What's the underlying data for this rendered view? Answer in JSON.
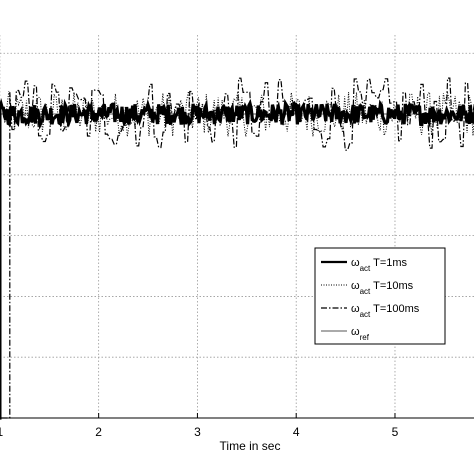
{
  "chart_data": {
    "type": "line",
    "xlabel": "Time in sec",
    "ylabel": "",
    "xlim": [
      0.9,
      5.8
    ],
    "ylim": [
      0,
      1.26
    ],
    "xticks": [
      1,
      2,
      3,
      4,
      5
    ],
    "xtick_labels": [
      "1",
      "2",
      "3",
      "4",
      "5"
    ],
    "grid": true,
    "legend_position": "lower-right",
    "series": [
      {
        "name": "ω_act T=1ms",
        "symbol": "ω",
        "subscript": "act",
        "suffix": "T=1ms",
        "style": "solid-bold",
        "color": "#000000",
        "step_time": 1.0,
        "initial": 0.0,
        "level": 1.0,
        "ripple": 0.035
      },
      {
        "name": "ω_act T=10ms",
        "symbol": "ω",
        "subscript": "act",
        "suffix": "T=10ms",
        "style": "dotted",
        "color": "#000000",
        "step_time": 1.01,
        "initial": 0.0,
        "level": 1.0,
        "ripple": 0.075
      },
      {
        "name": "ω_act T=100ms",
        "symbol": "ω",
        "subscript": "act",
        "suffix": "T=100ms",
        "style": "dashdot",
        "color": "#000000",
        "step_time": 1.1,
        "initial": 0.0,
        "level": 1.0,
        "ripple": 0.12
      },
      {
        "name": "ω_ref",
        "symbol": "ω",
        "subscript": "ref",
        "suffix": "",
        "style": "solid-thin",
        "color": "#555555",
        "step_time": 0.995,
        "initial": 0.0,
        "level": 1.0,
        "ripple": 0.0
      }
    ]
  }
}
